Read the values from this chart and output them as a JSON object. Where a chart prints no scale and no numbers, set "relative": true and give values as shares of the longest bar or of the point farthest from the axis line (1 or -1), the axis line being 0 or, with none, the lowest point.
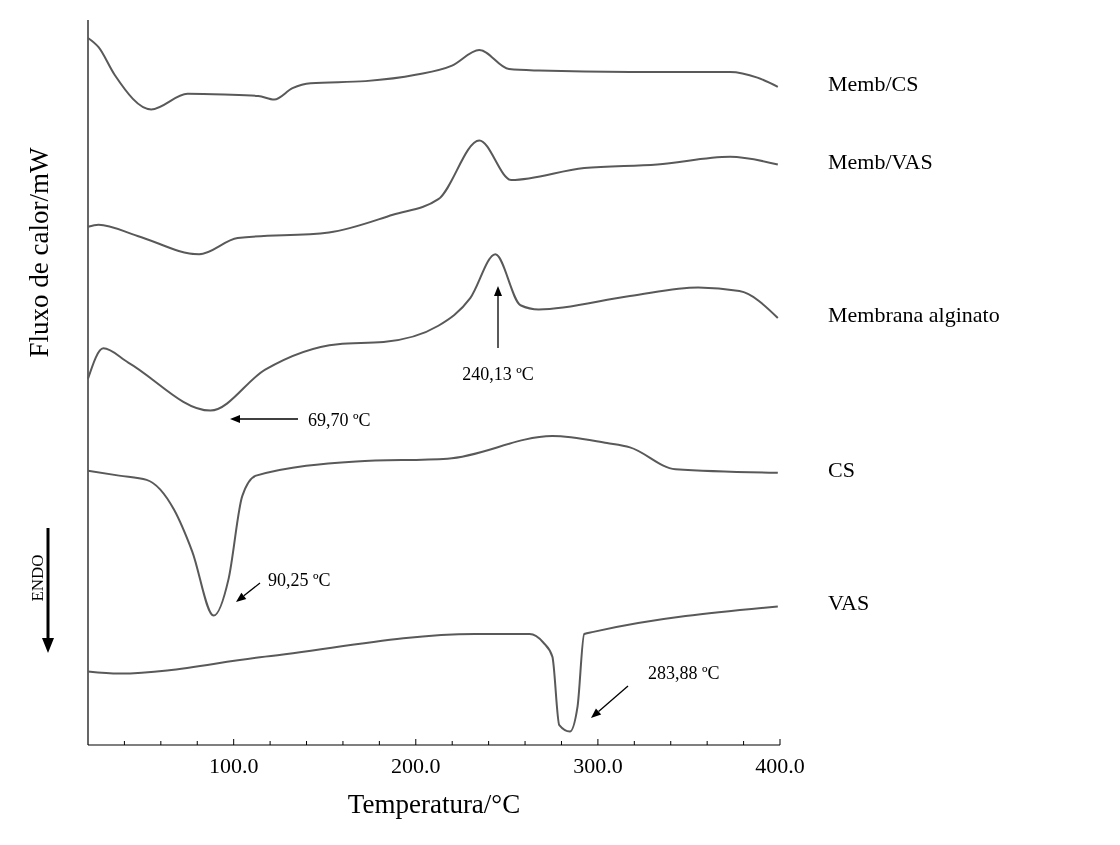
{
  "chart_data": {
    "type": "line",
    "relative": true,
    "xlabel": "Temperatura/°C",
    "ylabel": "Fluxo de calor/mW",
    "xlim": [
      20,
      400
    ],
    "xticks": [
      {
        "value": 40,
        "label": null
      },
      {
        "value": 60,
        "label": null
      },
      {
        "value": 80,
        "label": null
      },
      {
        "value": 100,
        "label": "100.0"
      },
      {
        "value": 120,
        "label": null
      },
      {
        "value": 140,
        "label": null
      },
      {
        "value": 160,
        "label": null
      },
      {
        "value": 180,
        "label": null
      },
      {
        "value": 200,
        "label": "200.0"
      },
      {
        "value": 220,
        "label": null
      },
      {
        "value": 240,
        "label": null
      },
      {
        "value": 260,
        "label": null
      },
      {
        "value": 280,
        "label": null
      },
      {
        "value": 300,
        "label": "300.0"
      },
      {
        "value": 320,
        "label": null
      },
      {
        "value": 340,
        "label": null
      },
      {
        "value": 360,
        "label": null
      },
      {
        "value": 380,
        "label": null
      },
      {
        "value": 400,
        "label": "400.0"
      }
    ],
    "series": [
      {
        "name": "Memb/CS",
        "color": "#595959",
        "x": [
          20,
          25.8,
          34.6,
          54.7,
          74.7,
          94.7,
          113.5,
          122.3,
          132.3,
          142.3,
          172.4,
          199.9,
          219.9,
          234.9,
          251.2,
          267.5,
          317.6,
          372.6,
          387.6,
          398.8
        ],
        "values": [
          1.0,
          0.987,
          0.948,
          0.899,
          0.921,
          0.92,
          0.918,
          0.913,
          0.929,
          0.936,
          0.939,
          0.948,
          0.961,
          0.983,
          0.956,
          0.954,
          0.952,
          0.952,
          0.944,
          0.931
        ]
      },
      {
        "name": "Memb/VAS",
        "color": "#595959",
        "x": [
          20,
          25.8,
          47.2,
          81,
          102.2,
          152.3,
          187.4,
          212.4,
          234.9,
          252.5,
          292.5,
          332.6,
          372.6,
          398.8
        ],
        "values": [
          0.733,
          0.736,
          0.72,
          0.694,
          0.717,
          0.725,
          0.75,
          0.772,
          0.855,
          0.799,
          0.816,
          0.821,
          0.832,
          0.821
        ]
      },
      {
        "name": "Membrana alginato",
        "color": "#595959",
        "x": [
          20,
          28.4,
          42.1,
          87.2,
          117.3,
          157.3,
          182.3,
          212.4,
          229.9,
          243.7,
          257.5,
          267.5,
          317.6,
          355.1,
          377.7,
          398.8
        ],
        "values": [
          0.518,
          0.561,
          0.541,
          0.473,
          0.531,
          0.567,
          0.57,
          0.593,
          0.632,
          0.694,
          0.622,
          0.616,
          0.635,
          0.647,
          0.642,
          0.604
        ]
      },
      {
        "name": "CS",
        "color": "#595959",
        "x": [
          20,
          37.1,
          52.2,
          67.2,
          77.2,
          89,
          97.2,
          104.7,
          112.3,
          167.3,
          217.4,
          275,
          305,
          317.6,
          342.6,
          398.8
        ],
        "values": [
          0.388,
          0.381,
          0.375,
          0.333,
          0.274,
          0.183,
          0.235,
          0.352,
          0.381,
          0.401,
          0.405,
          0.437,
          0.427,
          0.421,
          0.39,
          0.385
        ]
      },
      {
        "name": "VAS",
        "color": "#595959",
        "x": [
          20,
          37.1,
          117.3,
          232.5,
          262.5,
          270,
          275,
          278.8,
          284.6,
          288.8,
          292.5,
          297.5,
          398.8
        ],
        "values": [
          0.104,
          0.101,
          0.125,
          0.157,
          0.157,
          0.145,
          0.125,
          0.028,
          0.019,
          0.054,
          0.157,
          0.16,
          0.196
        ]
      }
    ],
    "annotations": [
      "69,70 ºC",
      "240,13 ºC",
      "90,25 ºC",
      "283,88 ºC",
      "ENDO"
    ],
    "grid": false,
    "legend": false,
    "marker": "none",
    "line_style": "solid"
  }
}
